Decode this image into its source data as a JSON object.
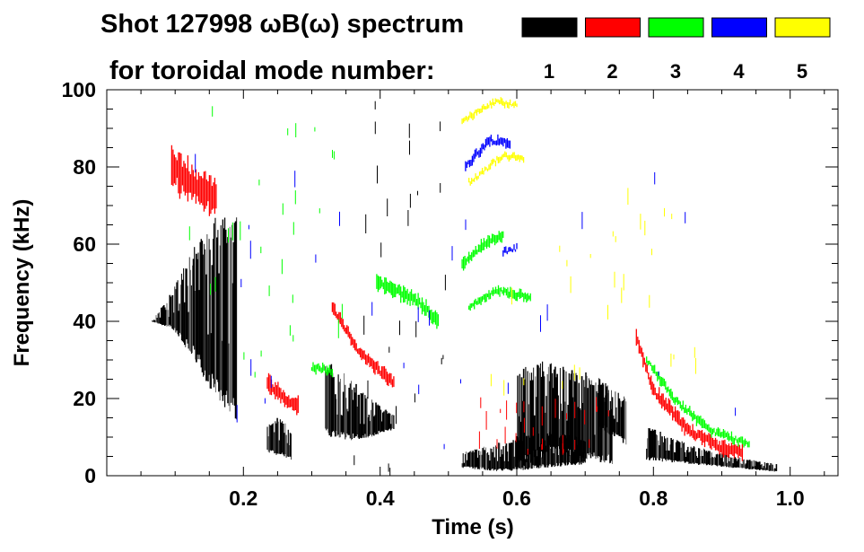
{
  "chart_data": {
    "type": "scatter",
    "title_line1": "Shot 127998 ωB(ω) spectrum",
    "title_line2": "for toroidal mode number:",
    "xlabel": "Time (s)",
    "ylabel": "Frequency (kHz)",
    "xlim": [
      0.0,
      1.07
    ],
    "ylim": [
      0,
      100
    ],
    "xticks": [
      "0.2",
      "0.4",
      "0.6",
      "0.8",
      "1.0"
    ],
    "yticks": [
      "0",
      "20",
      "40",
      "60",
      "80",
      "100"
    ],
    "legend": [
      {
        "label": "1",
        "color": "#000000"
      },
      {
        "label": "2",
        "color": "#ff0000"
      },
      {
        "label": "3",
        "color": "#00ff00"
      },
      {
        "label": "4",
        "color": "#0000ff"
      },
      {
        "label": "5",
        "color": "#ffff00"
      }
    ],
    "series": [
      {
        "name": "n=1",
        "color": "#000000",
        "features": [
          {
            "kind": "band",
            "t0": 0.065,
            "t1": 0.19,
            "f0": [
              40,
              38,
              30,
              20,
              14
            ],
            "f1": [
              40,
              48,
              60,
              68,
              70
            ]
          },
          {
            "kind": "band",
            "t0": 0.235,
            "t1": 0.27,
            "f0": [
              6,
              5,
              4
            ],
            "f1": [
              13,
              16,
              12
            ]
          },
          {
            "kind": "band",
            "t0": 0.32,
            "t1": 0.42,
            "f0": [
              10,
              9,
              10,
              12
            ],
            "f1": [
              30,
              26,
              20,
              16
            ]
          },
          {
            "kind": "band",
            "t0": 0.52,
            "t1": 0.7,
            "f0": [
              2,
              1,
              2,
              3
            ],
            "f1": [
              6,
              9,
              12,
              10
            ]
          },
          {
            "kind": "band",
            "t0": 0.6,
            "t1": 0.74,
            "f0": [
              2,
              5,
              4,
              3
            ],
            "f1": [
              28,
              30,
              28,
              22
            ]
          },
          {
            "kind": "band",
            "t0": 0.72,
            "t1": 0.76,
            "f0": [
              12,
              10,
              8
            ],
            "f1": [
              26,
              24,
              20
            ]
          },
          {
            "kind": "band",
            "t0": 0.79,
            "t1": 0.98,
            "f0": [
              4,
              3,
              2,
              1
            ],
            "f1": [
              13,
              8,
              5,
              3
            ]
          },
          {
            "kind": "streaks",
            "t0": 0.355,
            "t1": 0.5,
            "f0": 0,
            "f1": 100
          }
        ]
      },
      {
        "name": "n=2",
        "color": "#ff0000",
        "features": [
          {
            "kind": "curve",
            "t": [
              0.095,
              0.13,
              0.16
            ],
            "f": [
              80,
              75,
              72
            ],
            "w": 14
          },
          {
            "kind": "curve",
            "t": [
              0.235,
              0.26,
              0.28
            ],
            "f": [
              24,
              20,
              18
            ],
            "w": 6
          },
          {
            "kind": "curve",
            "t": [
              0.33,
              0.37,
              0.42
            ],
            "f": [
              44,
              32,
              24
            ],
            "w": 4
          },
          {
            "kind": "curve",
            "t": [
              0.775,
              0.8,
              0.85,
              0.9,
              0.93
            ],
            "f": [
              36,
              22,
              12,
              7,
              6
            ],
            "w": 5
          },
          {
            "kind": "streaks",
            "t0": 0.53,
            "t1": 0.77,
            "f0": 5,
            "f1": 18
          }
        ]
      },
      {
        "name": "n=3",
        "color": "#00ff00",
        "features": [
          {
            "kind": "curve",
            "t": [
              0.395,
              0.45,
              0.485
            ],
            "f": [
              50,
              46,
              40
            ],
            "w": 5
          },
          {
            "kind": "curve",
            "t": [
              0.52,
              0.56,
              0.58
            ],
            "f": [
              55,
              61,
              62
            ],
            "w": 4
          },
          {
            "kind": "curve",
            "t": [
              0.53,
              0.575,
              0.62
            ],
            "f": [
              44,
              48,
              46
            ],
            "w": 3
          },
          {
            "kind": "curve",
            "t": [
              0.3,
              0.33
            ],
            "f": [
              28,
              27
            ],
            "w": 3
          },
          {
            "kind": "curve",
            "t": [
              0.79,
              0.83,
              0.88,
              0.94
            ],
            "f": [
              30,
              20,
              12,
              8
            ],
            "w": 3
          },
          {
            "kind": "streaks",
            "t0": 0.1,
            "t1": 0.35,
            "f0": 25,
            "f1": 95
          }
        ]
      },
      {
        "name": "n=4",
        "color": "#0000ff",
        "features": [
          {
            "kind": "curve",
            "t": [
              0.525,
              0.56,
              0.59
            ],
            "f": [
              80,
              87,
              86
            ],
            "w": 3
          },
          {
            "kind": "curve",
            "t": [
              0.58,
              0.6
            ],
            "f": [
              58,
              59
            ],
            "w": 2
          },
          {
            "kind": "streaks",
            "t0": 0.12,
            "t1": 0.92,
            "f0": 5,
            "f1": 85
          }
        ]
      },
      {
        "name": "n=5",
        "color": "#ffff00",
        "features": [
          {
            "kind": "curve",
            "t": [
              0.52,
              0.57,
              0.6
            ],
            "f": [
              92,
              97,
              96
            ],
            "w": 2
          },
          {
            "kind": "curve",
            "t": [
              0.53,
              0.58,
              0.61
            ],
            "f": [
              76,
              83,
              82
            ],
            "w": 2
          },
          {
            "kind": "streaks",
            "t0": 0.5,
            "t1": 0.9,
            "f0": 20,
            "f1": 75
          }
        ]
      }
    ]
  }
}
